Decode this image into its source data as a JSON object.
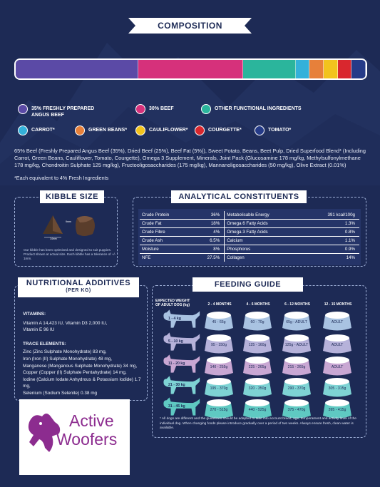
{
  "composition": {
    "title": "COMPOSITION",
    "bar_segments": [
      {
        "color": "#5b4aa6",
        "value": 35
      },
      {
        "color": "#d6317b",
        "value": 30
      },
      {
        "color": "#2bb59c",
        "value": 15
      },
      {
        "color": "#34b1da",
        "value": 4
      },
      {
        "color": "#e7803a",
        "value": 4
      },
      {
        "color": "#f2c31d",
        "value": 4
      },
      {
        "color": "#d9272e",
        "value": 4
      },
      {
        "color": "#253b88",
        "value": 4
      }
    ],
    "legend": [
      {
        "label": "35% FRESHLY PREPARED ANGUS BEEF",
        "color": "#5b4aa6"
      },
      {
        "label": "30% BEEF",
        "color": "#d6317b"
      },
      {
        "label": "OTHER FUNCTIONAL INGREDIENTS",
        "color": "#2bb59c"
      },
      {
        "label": "CARROT*",
        "color": "#34b1da"
      },
      {
        "label": "GREEN BEANS*",
        "color": "#e7803a"
      },
      {
        "label": "CAULIFLOWER*",
        "color": "#f2c31d"
      },
      {
        "label": "COURGETTE*",
        "color": "#d9272e"
      },
      {
        "label": "TOMATO*",
        "color": "#253b88"
      }
    ],
    "ingredients": "65% Beef (Freshly Prepared Angus Beef (35%), Dried Beef (25%), Beef Fat (5%)), Sweet Potato, Beans, Beet Pulp, Dried Superfood Blend* (Including Carrot, Green Beans, Cauliflower, Tomato, Courgette), Omega 3 Supplement, Minerals, Joint Pack (Glucosamine 178 mg/kg, Methylsulfonylmethane 178 mg/kg, Chondroitin Sulphate 125 mg/kg), Fructooligosaccharides (175 mg/kg), Mannanoligosaccharides (50 mg/kg), Olive Extract (0.01%)",
    "footnote": "*Each equivalent to 4% Fresh Ingredients"
  },
  "kibble": {
    "title": "KIBBLE SIZE",
    "dim_top": "9mm",
    "dim_bottom": "14mm",
    "note": "Our kibble has been optimised and designed to suit puppies. Product shown at actual size. Each kibble has a tolerance of +/- 1mm."
  },
  "analytical": {
    "title": "ANALYTICAL CONSTITUENTS",
    "rows": [
      {
        "l1": "Crude Protein",
        "v1": "36%",
        "l2": "Metabolisable Energy",
        "v2": "391 kcal/100g"
      },
      {
        "l1": "Crude Fat",
        "v1": "18%",
        "l2": "Omega 6 Fatty Acids",
        "v2": "1.3%"
      },
      {
        "l1": "Crude Fibre",
        "v1": "4%",
        "l2": "Omega 3 Fatty Acids",
        "v2": "0.8%"
      },
      {
        "l1": "Crude Ash",
        "v1": "6.5%",
        "l2": "Calcium",
        "v2": "1.1%"
      },
      {
        "l1": "Moisture",
        "v1": "8%",
        "l2": "Phosphorus",
        "v2": "0.9%"
      },
      {
        "l1": "NFE",
        "v1": "27.5%",
        "l2": "Collagen",
        "v2": "14%"
      }
    ]
  },
  "nutritional": {
    "title": "NUTRITIONAL ADDITIVES",
    "subtitle": "(PER KG)",
    "vitamins_heading": "VITAMINS:",
    "vitamins": "Vitamin A 14,423 IU, Vitamin D3 2,000 IU, Vitamin E 96 IU",
    "trace_heading": "TRACE ELEMENTS:",
    "trace": [
      "Zinc (Zinc Sulphate Monohydrate) 83 mg,",
      "Iron (Iron (II) Sulphate Monohydrate) 48 mg,",
      "Manganese (Manganous Sulphate Monohydrate) 34 mg,",
      "Copper (Copper (II) Sulphate Pentahydrate) 14 mg,",
      "Iodine (Calcium Iodate Anhydrous & Potassium Iodide) 1.7 mg,",
      "Selenium (Sodium Selenite) 0.38 mg"
    ]
  },
  "logo": {
    "line1": "Active",
    "line2": "Woofers"
  },
  "feeding": {
    "title": "FEEDING GUIDE",
    "weight_header": "EXPECTED WEIGHT OF ADULT DOG (kg)",
    "columns": [
      "2 - 4 MONTHS",
      "4 - 6 MONTHS",
      "6 - 12 MONTHS",
      "12 - 15 MONTHS"
    ],
    "rows": [
      {
        "weight": "1 - 4 kg",
        "color": "#a9c3e2",
        "values": [
          "45 - 65g",
          "60 - 70g",
          "65g - ADULT",
          "ADULT"
        ]
      },
      {
        "weight": "5 - 10 kg",
        "color": "#b6b2da",
        "values": [
          "95 - 150g",
          "125 - 160g",
          "125g - ADULT",
          "ADULT"
        ]
      },
      {
        "weight": "11 - 20 kg",
        "color": "#c9a7d3",
        "values": [
          "140 - 255g",
          "225 - 265g",
          "215 - 265g",
          "ADULT"
        ]
      },
      {
        "weight": "21 - 30 kg",
        "color": "#7ed3d4",
        "values": [
          "195 - 370g",
          "320 - 350g",
          "290 - 370g",
          "305 - 315g"
        ]
      },
      {
        "weight": "31 - 45 kg",
        "color": "#5fc9c2",
        "values": [
          "270 - 515g",
          "440 - 525g",
          "375 - 470g",
          "395 - 415g"
        ]
      }
    ],
    "note": "* All dogs are different and the guidelines should be adapted to take into account breed, age, temperament and activity level of the individual dog. When changing foods please introduce gradually over a period of two weeks. Always ensure fresh, clean water is available."
  }
}
